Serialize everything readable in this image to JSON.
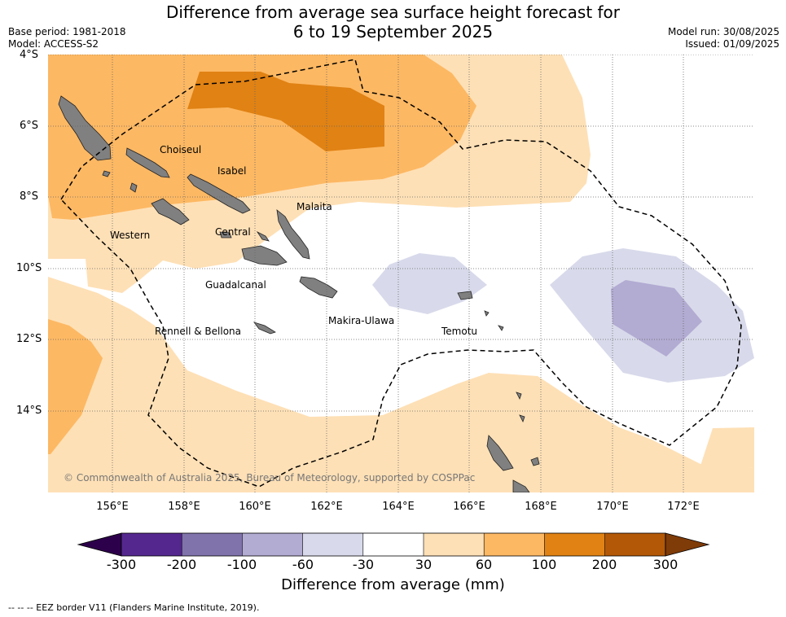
{
  "title": {
    "line1": "Difference from average sea surface height forecast for",
    "line2": "6 to 19 September 2025"
  },
  "meta_left": {
    "base_period": "Base period: 1981-2018",
    "model": "Model: ACCESS-S2"
  },
  "meta_right": {
    "model_run": "Model run: 30/08/2025",
    "issued": "Issued: 01/09/2025"
  },
  "axes": {
    "latitude_labels": [
      "4°S",
      "6°S",
      "8°S",
      "10°S",
      "12°S",
      "14°S"
    ],
    "longitude_labels": [
      "156°E",
      "158°E",
      "160°E",
      "162°E",
      "164°E",
      "166°E",
      "168°E",
      "170°E",
      "172°E"
    ]
  },
  "regions": {
    "choiseul": "Choiseul",
    "isabel": "Isabel",
    "malaita": "Malaita",
    "western": "Western",
    "central": "Central",
    "guadalcanal": "Guadalcanal",
    "makira": "Makira-Ulawa",
    "temotu": "Temotu",
    "rennell": "Rennell & Bellona"
  },
  "copyright": "© Commonwealth of Australia 2025, Bureau of Meteorology, supported by COSPPac",
  "colorbar": {
    "ticks": [
      "-300",
      "-200",
      "-100",
      "-60",
      "-30",
      "30",
      "60",
      "100",
      "200",
      "300"
    ],
    "colors": [
      "#54278f",
      "#8073ac",
      "#b2abd2",
      "#d8daeb",
      "#ffffff",
      "#fee0b6",
      "#fdb863",
      "#e08214",
      "#b35806"
    ],
    "under_color": "#2d004b",
    "over_color": "#7f3b08",
    "title": "Difference from average (mm)"
  },
  "footnote": "--  --  -- EEZ border V11 (Flanders Marine Institute, 2019)."
}
